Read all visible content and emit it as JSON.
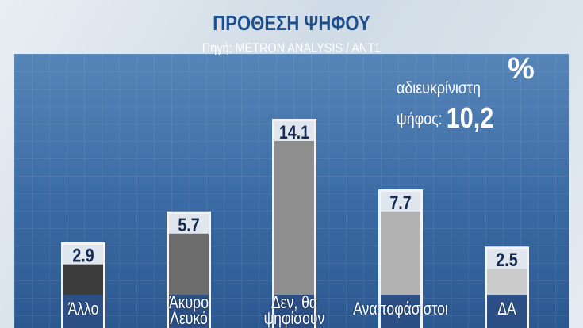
{
  "chart_data": {
    "type": "bar",
    "title": "ΠΡΟΘΕΣΗ ΨΗΦΟΥ",
    "subtitle": "Πηγή: METRON ANALYSIS / ANT1",
    "unit": "%",
    "annotation": {
      "label_line1": "αδιευκρίνιστη",
      "label_line2": "ψήφος:",
      "value": "10,2"
    },
    "categories": [
      "Άλλο",
      "Άκυρο Λευκό",
      "Δεν θα ψηφίσουν",
      "Αναποφάσιστοι",
      "ΔΑ"
    ],
    "category_lines": [
      [
        "Άλλο"
      ],
      [
        "Άκυρο",
        "Λευκό"
      ],
      [
        "Δεν, θα",
        "ψηφίσουν"
      ],
      [
        "Αναποφάσιστοι"
      ],
      [
        "ΔΑ"
      ]
    ],
    "values": [
      2.9,
      5.7,
      14.1,
      7.7,
      2.5
    ],
    "value_labels": [
      "2.9",
      "5.7",
      "14.1",
      "7.7",
      "2.5"
    ],
    "colors": [
      "#3c3c3c",
      "#6c6c6c",
      "#8e8e8e",
      "#b2b2b2",
      "#cbcbcb"
    ],
    "grid": true
  }
}
